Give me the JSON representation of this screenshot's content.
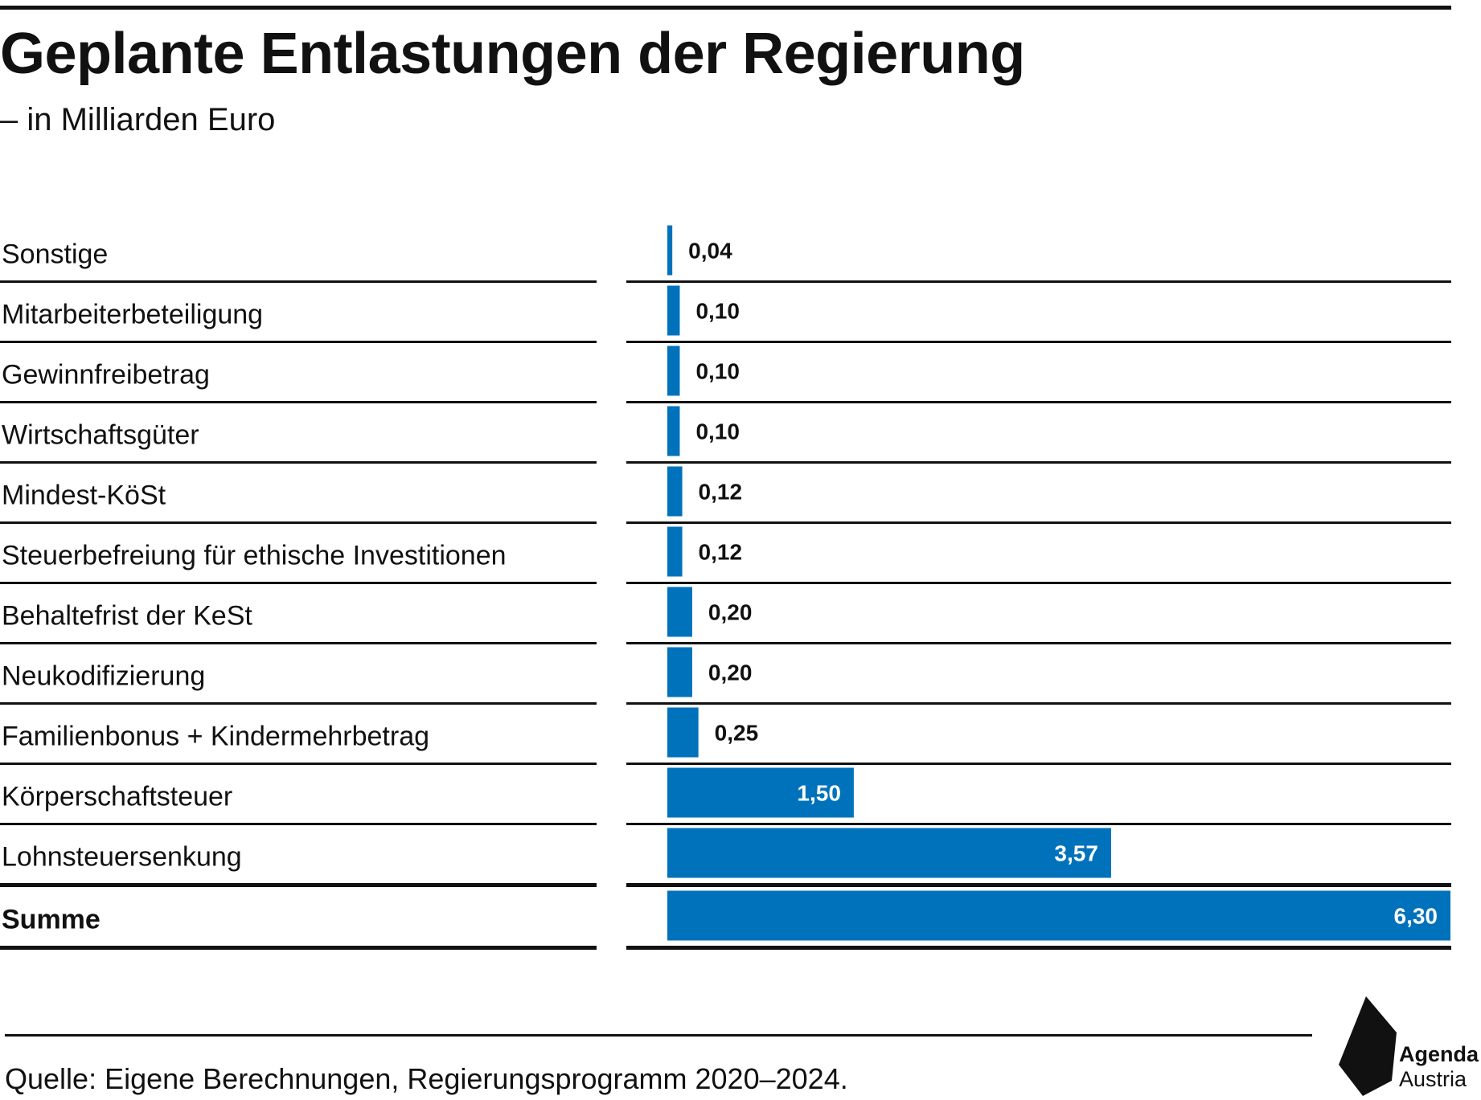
{
  "header": {
    "title": "Geplante Entlastungen der Regierung",
    "subtitle": "– in Milliarden Euro"
  },
  "chart_data": {
    "type": "bar",
    "orientation": "horizontal",
    "categories": [
      "Sonstige",
      "Mitarbeiterbeteiligung",
      "Gewinnfreibetrag",
      "Wirtschaftsgüter",
      "Mindest-KöSt",
      "Steuerbefreiung für ethische Investitionen",
      "Behaltefrist der KeSt",
      "Neukodifizierung",
      "Familienbonus + Kindermehrbetrag",
      "Körperschaftsteuer",
      "Lohnsteuersenkung",
      "Summe"
    ],
    "values": [
      0.04,
      0.1,
      0.1,
      0.1,
      0.12,
      0.12,
      0.2,
      0.2,
      0.25,
      1.5,
      3.57,
      6.3
    ],
    "value_labels": [
      "0,04",
      "0,10",
      "0,10",
      "0,10",
      "0,12",
      "0,12",
      "0,20",
      "0,20",
      "0,25",
      "1,50",
      "3,57",
      "6,30"
    ],
    "total_category": "Summe",
    "xlim": [
      0,
      6.3
    ],
    "bar_color": "#0072bc",
    "grid": false,
    "legend": "none"
  },
  "footer": {
    "source": "Quelle: Eigene Berechnungen, Regierungsprogramm 2020–2024."
  },
  "logo": {
    "line1": "Agenda",
    "line2": "Austria"
  }
}
